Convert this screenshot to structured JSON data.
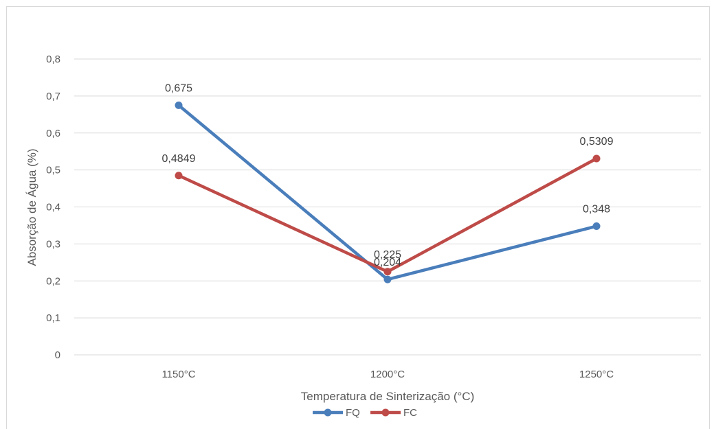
{
  "chart_data": {
    "type": "line",
    "title": "",
    "xlabel": "Temperatura de Sinterização (°C)",
    "ylabel": "Absorção de Água (%)",
    "categories": [
      "1150°C",
      "1200°C",
      "1250°C"
    ],
    "ylim": [
      0,
      0.8
    ],
    "yticks": [
      "0",
      "0,1",
      "0,2",
      "0,3",
      "0,4",
      "0,5",
      "0,6",
      "0,7",
      "0,8"
    ],
    "grid": true,
    "legend": "bottom",
    "series": [
      {
        "name": "FQ",
        "color": "#4a7ebb",
        "values": [
          0.675,
          0.204,
          0.348
        ],
        "labels": [
          "0,675",
          "0,204",
          "0,348"
        ]
      },
      {
        "name": "FC",
        "color": "#be4b48",
        "values": [
          0.4849,
          0.225,
          0.5309
        ],
        "labels": [
          "0,4849",
          "0,225",
          "0,5309"
        ]
      }
    ]
  }
}
